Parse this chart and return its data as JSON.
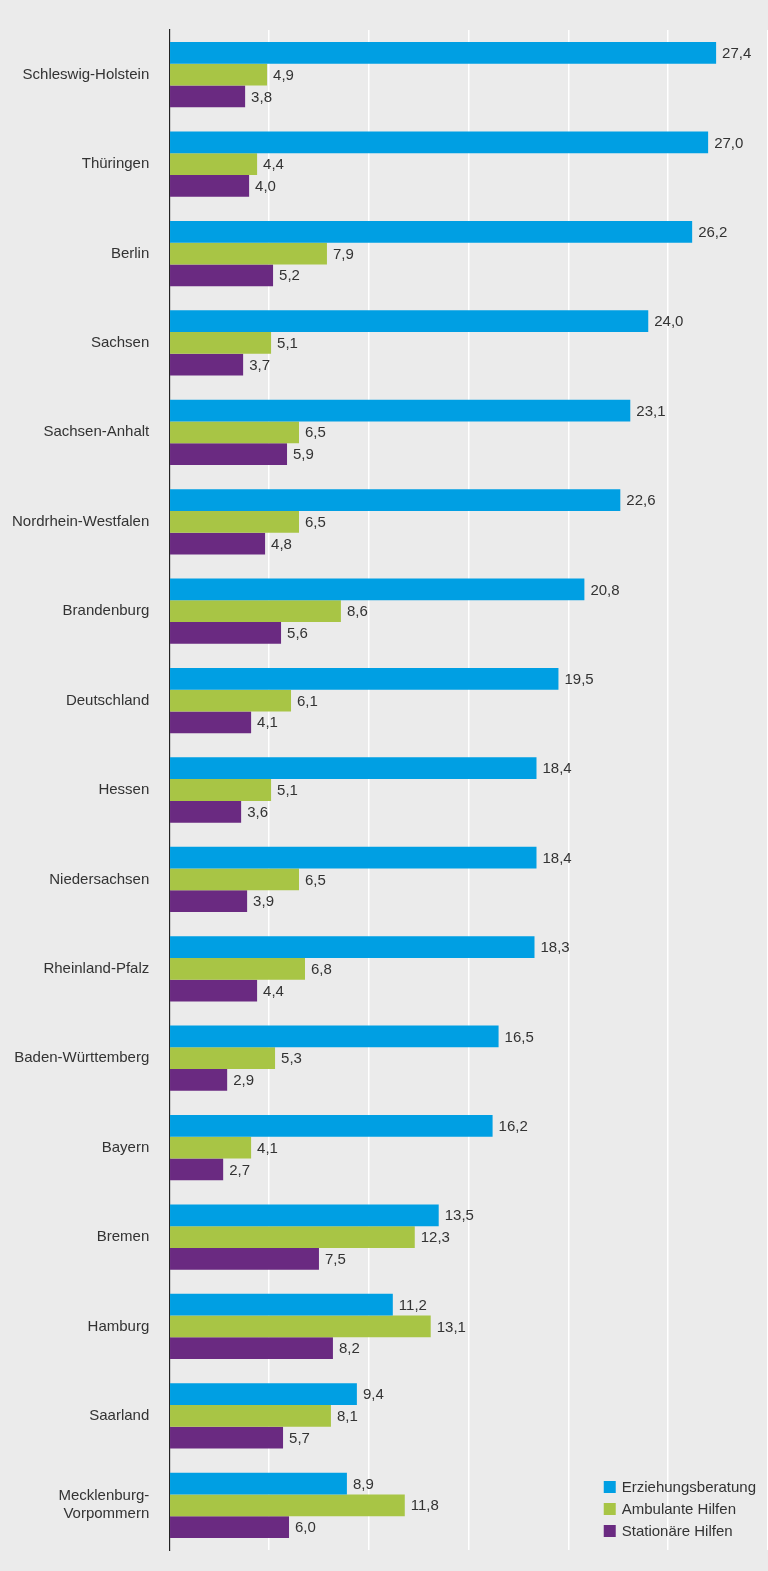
{
  "chart_data": {
    "type": "bar",
    "orientation": "horizontal",
    "categories": [
      "Schleswig-Holstein",
      "Thüringen",
      "Berlin",
      "Sachsen",
      "Sachsen-Anhalt",
      "Nordrhein-Westfalen",
      "Brandenburg",
      "Deutschland",
      "Hessen",
      "Niedersachsen",
      "Rheinland-Pfalz",
      "Baden-Württemberg",
      "Bayern",
      "Bremen",
      "Hamburg",
      "Saarland",
      "Mecklenburg-Vorpommern"
    ],
    "series": [
      {
        "name": "Erziehungsberatung",
        "color": "#009fe3",
        "values": [
          27.4,
          27.0,
          26.2,
          24.0,
          23.1,
          22.6,
          20.8,
          19.5,
          18.4,
          18.4,
          18.3,
          16.5,
          16.2,
          13.5,
          11.2,
          9.4,
          8.9
        ],
        "value_labels": [
          "27,4",
          "27,0",
          "26,2",
          "24,0",
          "23,1",
          "22,6",
          "20,8",
          "19,5",
          "18,4",
          "18,4",
          "18,3",
          "16,5",
          "16,2",
          "13,5",
          "11,2",
          "9,4",
          "8,9"
        ]
      },
      {
        "name": "Ambulante Hilfen",
        "color": "#a8c545",
        "values": [
          4.9,
          4.4,
          7.9,
          5.1,
          6.5,
          6.5,
          8.6,
          6.1,
          5.1,
          6.5,
          6.8,
          5.3,
          4.1,
          12.3,
          13.1,
          8.1,
          11.8
        ],
        "value_labels": [
          "4,9",
          "4,4",
          "7,9",
          "5,1",
          "6,5",
          "6,5",
          "8,6",
          "6,1",
          "5,1",
          "6,5",
          "6,8",
          "5,3",
          "4,1",
          "12,3",
          "13,1",
          "8,1",
          "11,8"
        ]
      },
      {
        "name": "Stationäre Hilfen",
        "color": "#6a2a81",
        "values": [
          3.8,
          4.0,
          5.2,
          3.7,
          5.9,
          4.8,
          5.6,
          4.1,
          3.6,
          3.9,
          4.4,
          2.9,
          2.7,
          7.5,
          8.2,
          5.7,
          6.0
        ],
        "value_labels": [
          "3,8",
          "4,0",
          "5,2",
          "3,7",
          "5,9",
          "4,8",
          "5,6",
          "4,1",
          "3,6",
          "3,9",
          "4,4",
          "2,9",
          "2,7",
          "7,5",
          "8,2",
          "5,7",
          "6,0"
        ]
      }
    ],
    "tick_labels": "y",
    "grid": "x",
    "legend": "bottom right"
  }
}
